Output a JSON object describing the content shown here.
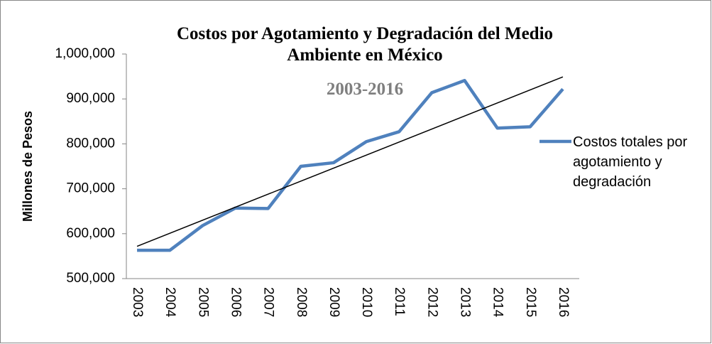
{
  "chart_data": {
    "type": "line",
    "title": "Costos por Agotamiento y Degradación del Medio Ambiente en México",
    "subtitle": "2003-2016",
    "y_label": "Millones de Pesos",
    "categories": [
      "2003",
      "2004",
      "2005",
      "2006",
      "2007",
      "2008",
      "2009",
      "2010",
      "2011",
      "2012",
      "2013",
      "2014",
      "2015",
      "2016"
    ],
    "series": [
      {
        "name": "Costos totales por agotamiento y degradación",
        "color": "#4f81bd",
        "values": [
          563000,
          563000,
          618000,
          657000,
          656000,
          750000,
          758000,
          805000,
          827000,
          914000,
          941000,
          835000,
          838000,
          922000
        ]
      }
    ],
    "trendline": true,
    "trend_color": "#000000",
    "ylim": [
      500000,
      1000000
    ],
    "yticks": [
      {
        "value": 500000,
        "label": "500,000"
      },
      {
        "value": 600000,
        "label": "600,000"
      },
      {
        "value": 700000,
        "label": "700,000"
      },
      {
        "value": 800000,
        "label": "800,000"
      },
      {
        "value": 900000,
        "label": "900,000"
      },
      {
        "value": 1000000,
        "label": "1,000,000"
      }
    ],
    "grid": false,
    "legend": "right"
  }
}
